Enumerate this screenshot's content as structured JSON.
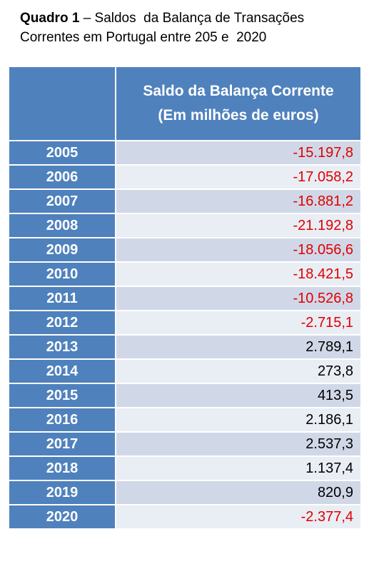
{
  "title": {
    "label": "Quadro 1",
    "line1": "– Saldos  da Balança de Transações",
    "line2": "Correntes em Portugal entre 205 e  2020"
  },
  "table": {
    "header": [
      "Saldo da Balança Corrente",
      "(Em milhões de euros)"
    ],
    "rows": [
      [
        "2005",
        "-15.197,8"
      ],
      [
        "2006",
        "-17.058,2"
      ],
      [
        "2007",
        "-16.881,2"
      ],
      [
        "2008",
        "-21.192,8"
      ],
      [
        "2009",
        "-18.056,6"
      ],
      [
        "2010",
        "-18.421,5"
      ],
      [
        "2011",
        "-10.526,8"
      ],
      [
        "2012",
        "-2.715,1"
      ],
      [
        "2013",
        "2.789,1"
      ],
      [
        "2014",
        "273,8"
      ],
      [
        "2015",
        "413,5"
      ],
      [
        "2016",
        "2.186,1"
      ],
      [
        "2017",
        "2.537,3"
      ],
      [
        "2018",
        "1.137,4"
      ],
      [
        "2019",
        "820,9"
      ],
      [
        "2020",
        "-2.377,4"
      ]
    ]
  }
}
